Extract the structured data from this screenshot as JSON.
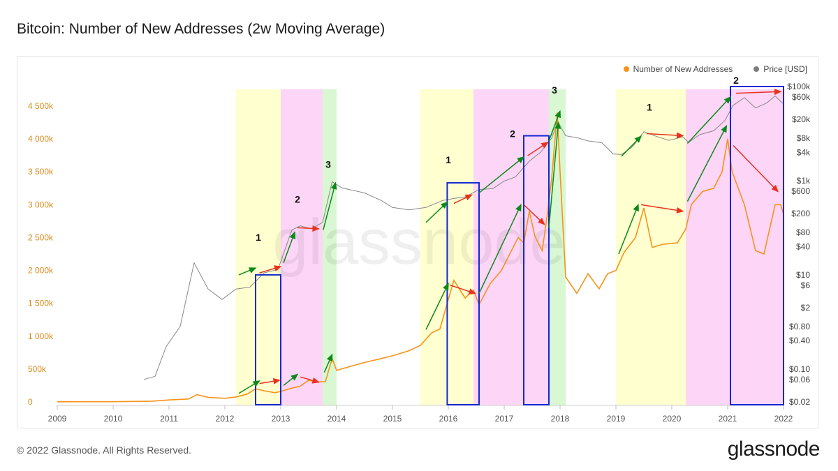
{
  "header": {
    "title": "Bitcoin: Number of New Addresses (2w Moving Average)"
  },
  "footer": {
    "copyright": "© 2022 Glassnode. All Rights Reserved.",
    "logo": "glassnode"
  },
  "watermark": "glassnode",
  "colors": {
    "addresses": "#f7931a",
    "price": "#888888",
    "left_axis": "#d98a1c",
    "yellow": "#ffffcc",
    "pink": "#fdd3f7",
    "green": "#d6f7d0",
    "box": "#1428d4",
    "arrow_up": "#0b8a1a",
    "arrow_down": "#e8321e"
  },
  "chart_data": {
    "type": "line",
    "title": "Bitcoin: Number of New Addresses (2w Moving Average)",
    "legend": {
      "position": "top-right",
      "entries": [
        "Number of New Addresses",
        "Price [USD]"
      ]
    },
    "x_ticks": [
      "2009",
      "2010",
      "2011",
      "2012",
      "2013",
      "2014",
      "2015",
      "2016",
      "2017",
      "2018",
      "2019",
      "2020",
      "2021",
      "2022"
    ],
    "x_range": [
      2009,
      2022
    ],
    "y_left": {
      "range": [
        0,
        4500000
      ],
      "ticks": [
        {
          "v": 0,
          "label": "0"
        },
        {
          "v": 500000,
          "label": "500k"
        },
        {
          "v": 1000000,
          "label": "1 000k"
        },
        {
          "v": 1500000,
          "label": "1 500k"
        },
        {
          "v": 2000000,
          "label": "2 000k"
        },
        {
          "v": 2500000,
          "label": "2 500k"
        },
        {
          "v": 3000000,
          "label": "3 000k"
        },
        {
          "v": 3500000,
          "label": "3 500k"
        },
        {
          "v": 4000000,
          "label": "4 000k"
        },
        {
          "v": 4500000,
          "label": "4 500k"
        }
      ]
    },
    "y_right": {
      "scale": "log",
      "range": [
        0.02,
        100000
      ],
      "ticks": [
        {
          "v": 0.02,
          "label": "$0.02"
        },
        {
          "v": 0.06,
          "label": "$0.06"
        },
        {
          "v": 0.1,
          "label": "$0.10"
        },
        {
          "v": 0.4,
          "label": "$0.40"
        },
        {
          "v": 0.8,
          "label": "$0.80"
        },
        {
          "v": 2,
          "label": "$2"
        },
        {
          "v": 6,
          "label": "$6"
        },
        {
          "v": 10,
          "label": "$10"
        },
        {
          "v": 40,
          "label": "$40"
        },
        {
          "v": 80,
          "label": "$80"
        },
        {
          "v": 200,
          "label": "$200"
        },
        {
          "v": 600,
          "label": "$600"
        },
        {
          "v": 1000,
          "label": "$1k"
        },
        {
          "v": 4000,
          "label": "$4k"
        },
        {
          "v": 8000,
          "label": "$8k"
        },
        {
          "v": 20000,
          "label": "$20k"
        },
        {
          "v": 60000,
          "label": "$60k"
        },
        {
          "v": 100000,
          "label": "$100k"
        }
      ]
    },
    "series": [
      {
        "name": "Number of New Addresses",
        "axis": "left",
        "points": [
          [
            2009.0,
            2000
          ],
          [
            2010.0,
            3000
          ],
          [
            2010.7,
            12000
          ],
          [
            2011.0,
            30000
          ],
          [
            2011.35,
            45000
          ],
          [
            2011.5,
            110000
          ],
          [
            2011.7,
            70000
          ],
          [
            2012.0,
            55000
          ],
          [
            2012.2,
            75000
          ],
          [
            2012.4,
            120000
          ],
          [
            2012.55,
            200000
          ],
          [
            2012.7,
            170000
          ],
          [
            2012.9,
            140000
          ],
          [
            2013.0,
            160000
          ],
          [
            2013.2,
            210000
          ],
          [
            2013.35,
            240000
          ],
          [
            2013.5,
            330000
          ],
          [
            2013.65,
            300000
          ],
          [
            2013.8,
            310000
          ],
          [
            2013.92,
            660000
          ],
          [
            2014.0,
            480000
          ],
          [
            2014.2,
            530000
          ],
          [
            2014.5,
            600000
          ],
          [
            2014.8,
            660000
          ],
          [
            2015.0,
            700000
          ],
          [
            2015.3,
            780000
          ],
          [
            2015.5,
            860000
          ],
          [
            2015.7,
            1050000
          ],
          [
            2015.85,
            1110000
          ],
          [
            2016.0,
            1560000
          ],
          [
            2016.1,
            1850000
          ],
          [
            2016.3,
            1580000
          ],
          [
            2016.45,
            1700000
          ],
          [
            2016.55,
            1480000
          ],
          [
            2016.75,
            1800000
          ],
          [
            2016.95,
            2000000
          ],
          [
            2017.1,
            2250000
          ],
          [
            2017.25,
            2500000
          ],
          [
            2017.35,
            2420000
          ],
          [
            2017.45,
            2900000
          ],
          [
            2017.55,
            2520000
          ],
          [
            2017.68,
            2300000
          ],
          [
            2017.78,
            2900000
          ],
          [
            2017.85,
            3400000
          ],
          [
            2017.95,
            4400000
          ],
          [
            2018.0,
            3500000
          ],
          [
            2018.1,
            1900000
          ],
          [
            2018.3,
            1650000
          ],
          [
            2018.5,
            1950000
          ],
          [
            2018.7,
            1720000
          ],
          [
            2018.85,
            1950000
          ],
          [
            2019.0,
            2000000
          ],
          [
            2019.15,
            2280000
          ],
          [
            2019.35,
            2500000
          ],
          [
            2019.5,
            2950000
          ],
          [
            2019.65,
            2350000
          ],
          [
            2019.85,
            2400000
          ],
          [
            2020.1,
            2420000
          ],
          [
            2020.25,
            2630000
          ],
          [
            2020.35,
            3000000
          ],
          [
            2020.55,
            3200000
          ],
          [
            2020.75,
            3250000
          ],
          [
            2020.9,
            3500000
          ],
          [
            2021.0,
            4000000
          ],
          [
            2021.08,
            3500000
          ],
          [
            2021.3,
            3000000
          ],
          [
            2021.5,
            2300000
          ],
          [
            2021.65,
            2250000
          ],
          [
            2021.85,
            3000000
          ],
          [
            2021.95,
            3000000
          ],
          [
            2022.0,
            2850000
          ]
        ]
      },
      {
        "name": "Price [USD]",
        "axis": "right",
        "points": [
          [
            2010.55,
            0.06
          ],
          [
            2010.75,
            0.07
          ],
          [
            2010.95,
            0.3
          ],
          [
            2011.2,
            0.8
          ],
          [
            2011.45,
            18
          ],
          [
            2011.7,
            5
          ],
          [
            2011.95,
            3
          ],
          [
            2012.2,
            5
          ],
          [
            2012.45,
            5.5
          ],
          [
            2012.7,
            11
          ],
          [
            2012.95,
            13
          ],
          [
            2013.2,
            90
          ],
          [
            2013.35,
            110
          ],
          [
            2013.55,
            95
          ],
          [
            2013.75,
            130
          ],
          [
            2013.92,
            950
          ],
          [
            2014.1,
            700
          ],
          [
            2014.5,
            550
          ],
          [
            2014.8,
            380
          ],
          [
            2015.0,
            270
          ],
          [
            2015.3,
            240
          ],
          [
            2015.6,
            270
          ],
          [
            2015.9,
            380
          ],
          [
            2016.1,
            420
          ],
          [
            2016.3,
            450
          ],
          [
            2016.55,
            650
          ],
          [
            2016.8,
            680
          ],
          [
            2017.0,
            980
          ],
          [
            2017.2,
            1200
          ],
          [
            2017.45,
            2600
          ],
          [
            2017.65,
            4000
          ],
          [
            2017.85,
            8000
          ],
          [
            2017.96,
            18000
          ],
          [
            2018.1,
            9000
          ],
          [
            2018.3,
            8200
          ],
          [
            2018.5,
            7000
          ],
          [
            2018.75,
            6400
          ],
          [
            2018.95,
            3700
          ],
          [
            2019.1,
            3600
          ],
          [
            2019.3,
            5300
          ],
          [
            2019.5,
            11000
          ],
          [
            2019.75,
            8500
          ],
          [
            2019.95,
            7200
          ],
          [
            2020.2,
            8500
          ],
          [
            2020.3,
            6500
          ],
          [
            2020.5,
            9500
          ],
          [
            2020.75,
            11500
          ],
          [
            2020.95,
            19000
          ],
          [
            2021.1,
            40000
          ],
          [
            2021.3,
            58000
          ],
          [
            2021.5,
            35000
          ],
          [
            2021.7,
            45000
          ],
          [
            2021.85,
            63000
          ],
          [
            2021.95,
            48000
          ],
          [
            2022.0,
            43000
          ]
        ]
      }
    ],
    "shaded_regions": [
      {
        "from": 2012.2,
        "to": 2012.55,
        "color": "yellow"
      },
      {
        "from": 2012.55,
        "to": 2013.0,
        "color": "yellow"
      },
      {
        "from": 2013.0,
        "to": 2013.75,
        "color": "pink"
      },
      {
        "from": 2013.75,
        "to": 2014.0,
        "color": "green"
      },
      {
        "from": 2015.5,
        "to": 2016.45,
        "color": "yellow"
      },
      {
        "from": 2016.45,
        "to": 2017.35,
        "color": "pink"
      },
      {
        "from": 2017.35,
        "to": 2017.8,
        "color": "pink"
      },
      {
        "from": 2017.8,
        "to": 2018.1,
        "color": "green"
      },
      {
        "from": 2019.0,
        "to": 2020.25,
        "color": "yellow"
      },
      {
        "from": 2020.25,
        "to": 2022.0,
        "color": "pink"
      }
    ],
    "phase_boxes": [
      {
        "from": 2012.55,
        "to": 2013.0,
        "top_price": 10
      },
      {
        "from": 2015.98,
        "to": 2016.55,
        "top_price": 900
      },
      {
        "from": 2017.35,
        "to": 2017.8,
        "top_price": 9000
      },
      {
        "from": 2021.05,
        "to": 2022.0,
        "top_price": 100000
      }
    ],
    "phase_labels": [
      {
        "text": "1",
        "x": 2012.6,
        "y": 2450000
      },
      {
        "text": "2",
        "x": 2013.3,
        "y": 3030000
      },
      {
        "text": "3",
        "x": 2013.85,
        "y": 3560000
      },
      {
        "text": "1",
        "x": 2016.0,
        "y": 3630000
      },
      {
        "text": "2",
        "x": 2017.15,
        "y": 4030000
      },
      {
        "text": "3",
        "x": 2017.9,
        "y": 4690000
      },
      {
        "text": "1",
        "x": 2019.6,
        "y": 4430000
      },
      {
        "text": "2",
        "x": 2021.15,
        "y": 4840000
      }
    ]
  }
}
